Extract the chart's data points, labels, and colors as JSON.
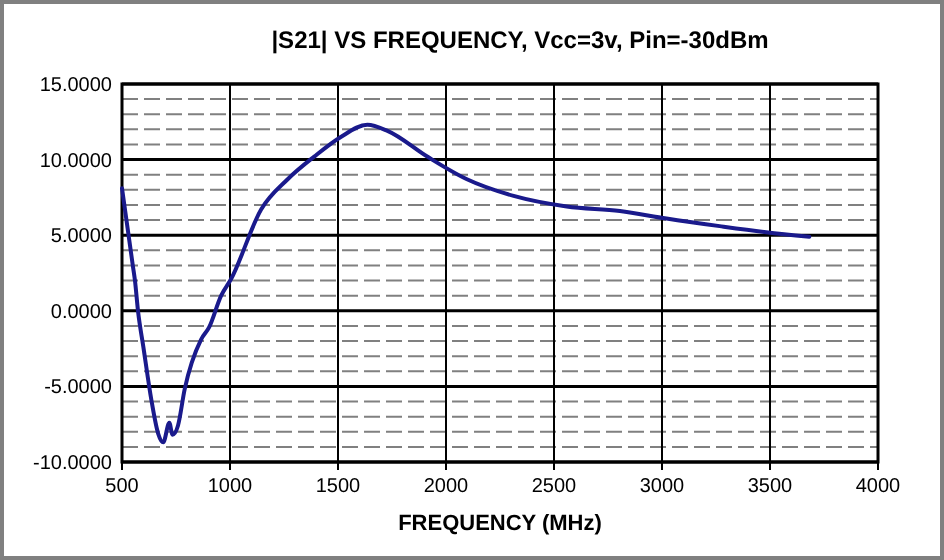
{
  "chart_data": {
    "type": "line",
    "title": "|S21| VS FREQUENCY, Vcc=3v, Pin=-30dBm",
    "xlabel": "FREQUENCY (MHz)",
    "series": [
      {
        "color": "#1a1a8c",
        "x": [
          500,
          550,
          560,
          574,
          599,
          636,
          667,
          691,
          719,
          734,
          759,
          790,
          866,
          903,
          959,
          1005,
          1144,
          1267,
          1390,
          1513,
          1636,
          1729,
          1913,
          2097,
          2313,
          2559,
          2805,
          3021,
          3267,
          3482,
          3682
        ],
        "values": [
          8.1,
          3.0,
          2.0,
          0.0,
          -2.4,
          -5.9,
          -8.1,
          -8.7,
          -7.4,
          -8.2,
          -7.6,
          -5.2,
          -1.9,
          -1.1,
          1.0,
          2.1,
          6.7,
          8.7,
          10.2,
          11.5,
          12.3,
          11.9,
          10.2,
          8.7,
          7.6,
          6.9,
          6.6,
          6.1,
          5.6,
          5.2,
          4.9
        ]
      }
    ],
    "xlim": [
      500,
      4000
    ],
    "xticks": [
      500,
      1000,
      1500,
      2000,
      2500,
      3000,
      3500,
      4000
    ],
    "ylim": [
      -10,
      15
    ],
    "yticks": [
      {
        "value": -10,
        "label": "-10.0000"
      },
      {
        "value": -9,
        "label": null
      },
      {
        "value": -8,
        "label": null
      },
      {
        "value": -7,
        "label": null
      },
      {
        "value": -6,
        "label": null
      },
      {
        "value": -5,
        "label": "-5.0000"
      },
      {
        "value": -4,
        "label": null
      },
      {
        "value": -3,
        "label": null
      },
      {
        "value": -2,
        "label": null
      },
      {
        "value": -1,
        "label": null
      },
      {
        "value": 0,
        "label": "0.0000"
      },
      {
        "value": 1,
        "label": null
      },
      {
        "value": 2,
        "label": null
      },
      {
        "value": 3,
        "label": null
      },
      {
        "value": 4,
        "label": null
      },
      {
        "value": 5,
        "label": "5.0000"
      },
      {
        "value": 6,
        "label": null
      },
      {
        "value": 7,
        "label": null
      },
      {
        "value": 8,
        "label": null
      },
      {
        "value": 9,
        "label": null
      },
      {
        "value": 10,
        "label": "10.0000"
      },
      {
        "value": 11,
        "label": null
      },
      {
        "value": 12,
        "label": null
      },
      {
        "value": 13,
        "label": null
      },
      {
        "value": 14,
        "label": null
      },
      {
        "value": 15,
        "label": "15.0000"
      }
    ],
    "grid": true
  }
}
